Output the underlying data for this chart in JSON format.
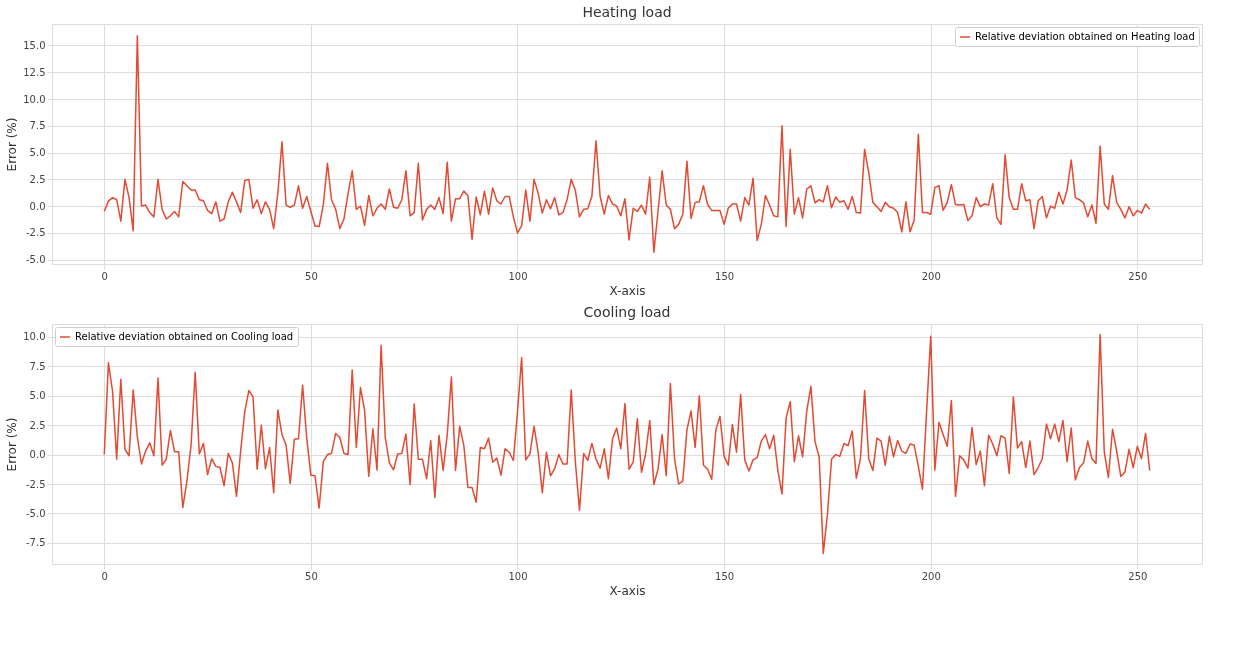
{
  "chart_data": [
    {
      "type": "line",
      "title": "Heating load",
      "xlabel": "X-axis",
      "ylabel": "Error (%)",
      "grid": true,
      "legend": "top right",
      "xlim": [
        -12.65,
        265.65
      ],
      "xticks": [
        0,
        50,
        100,
        150,
        200,
        250
      ],
      "ylim": [
        -5.4,
        17.0
      ],
      "yticks": [
        {
          "value": -5,
          "label": "-5.0"
        },
        {
          "value": -2.5,
          "label": "-2.5"
        },
        {
          "value": 0,
          "label": "0.0"
        },
        {
          "value": 2.5,
          "label": "2.5"
        },
        {
          "value": 5,
          "label": "5.0"
        },
        {
          "value": 7.5,
          "label": "7.5"
        },
        {
          "value": 10,
          "label": "10.0"
        },
        {
          "value": 12.5,
          "label": "12.5"
        },
        {
          "value": 15,
          "label": "15.0"
        }
      ],
      "x": [
        0,
        1,
        2,
        3,
        4,
        5,
        6,
        7,
        8,
        9,
        10,
        11,
        12,
        13,
        14,
        15,
        16,
        17,
        18,
        19,
        20,
        21,
        22,
        23,
        24,
        25,
        26,
        27,
        28,
        29,
        30,
        31,
        32,
        33,
        34,
        35,
        36,
        37,
        38,
        39,
        40,
        41,
        42,
        43,
        44,
        45,
        46,
        47,
        48,
        49,
        50,
        51,
        52,
        53,
        54,
        55,
        56,
        57,
        58,
        59,
        60,
        61,
        62,
        63,
        64,
        65,
        66,
        67,
        68,
        69,
        70,
        71,
        72,
        73,
        74,
        75,
        76,
        77,
        78,
        79,
        80,
        81,
        82,
        83,
        84,
        85,
        86,
        87,
        88,
        89,
        90,
        91,
        92,
        93,
        94,
        95,
        96,
        97,
        98,
        99,
        100,
        101,
        102,
        103,
        104,
        105,
        106,
        107,
        108,
        109,
        110,
        111,
        112,
        113,
        114,
        115,
        116,
        117,
        118,
        119,
        120,
        121,
        122,
        123,
        124,
        125,
        126,
        127,
        128,
        129,
        130,
        131,
        132,
        133,
        134,
        135,
        136,
        137,
        138,
        139,
        140,
        141,
        142,
        143,
        144,
        145,
        146,
        147,
        148,
        149,
        150,
        151,
        152,
        153,
        154,
        155,
        156,
        157,
        158,
        159,
        160,
        161,
        162,
        163,
        164,
        165,
        166,
        167,
        168,
        169,
        170,
        171,
        172,
        173,
        174,
        175,
        176,
        177,
        178,
        179,
        180,
        181,
        182,
        183,
        184,
        185,
        186,
        187,
        188,
        189,
        190,
        191,
        192,
        193,
        194,
        195,
        196,
        197,
        198,
        199,
        200,
        201,
        202,
        203,
        204,
        205,
        206,
        207,
        208,
        209,
        210,
        211,
        212,
        213,
        214,
        215,
        216,
        217,
        218,
        219,
        220,
        221,
        222,
        223,
        224,
        225,
        226,
        227,
        228,
        229,
        230,
        231,
        232,
        233,
        234,
        235,
        236,
        237,
        238,
        239,
        240,
        241,
        242,
        243,
        244,
        245,
        246,
        247,
        248,
        249,
        250,
        251,
        252,
        253
      ],
      "series": [
        {
          "name": "Relative deviation obtained on Heating load",
          "color": "#e24a33",
          "values": [
            -0.47,
            0.47,
            0.8,
            0.6,
            -1.4,
            2.5,
            0.8,
            -2.3,
            15.9,
            0,
            0.1,
            -0.6,
            -1.0,
            2.5,
            -0.3,
            -1.2,
            -0.9,
            -0.5,
            -1.0,
            2.3,
            1.9,
            1.5,
            1.5,
            0.6,
            0.5,
            -0.4,
            -0.7,
            0.4,
            -1.4,
            -1.2,
            0.4,
            1.3,
            0.4,
            -0.6,
            2.4,
            2.5,
            -0.2,
            0.6,
            -0.7,
            0.4,
            -0.3,
            -2.1,
            1.2,
            6.0,
            0.1,
            -0.1,
            0.1,
            1.9,
            -0.2,
            0.9,
            -0.5,
            -1.85,
            -1.9,
            0.1,
            4.0,
            0.6,
            -0.3,
            -2.1,
            -1.2,
            1.2,
            3.3,
            -0.3,
            0,
            -1.8,
            1.0,
            -0.9,
            -0.2,
            0.2,
            -0.3,
            1.6,
            -0.1,
            -0.2,
            0.6,
            3.3,
            -0.9,
            -0.6,
            4.0,
            -1.3,
            -0.3,
            0.1,
            -0.3,
            0.8,
            -0.7,
            4.1,
            -1.4,
            0.7,
            0.7,
            1.4,
            1.0,
            -3.1,
            0.85,
            -0.8,
            1.4,
            -0.75,
            1.7,
            0.5,
            0.2,
            0.9,
            0.9,
            -1.0,
            -2.5,
            -1.85,
            1.5,
            -1.4,
            2.5,
            1.2,
            -0.65,
            0.6,
            -0.25,
            0.8,
            -0.8,
            -0.6,
            0.6,
            2.5,
            1.45,
            -1.0,
            -0.3,
            -0.25,
            0.9,
            6.1,
            0.9,
            -0.75,
            1.0,
            0.2,
            0,
            -0.9,
            0.7,
            -3.15,
            -0.2,
            -0.5,
            0.1,
            -0.75,
            2.7,
            -4.3,
            -0.5,
            3.3,
            0.1,
            -0.3,
            -2.1,
            -1.7,
            -0.75,
            4.2,
            -1.15,
            0.35,
            0.4,
            1.9,
            0.15,
            -0.4,
            -0.4,
            -0.4,
            -1.7,
            -0.2,
            0.2,
            0.2,
            -1.4,
            0.8,
            0.1,
            2.6,
            -3.2,
            -1.7,
            1.0,
            0.1,
            -0.9,
            -1.0,
            7.5,
            -1.9,
            5.3,
            -0.75,
            0.8,
            -1.1,
            1.6,
            1.9,
            0.3,
            0.6,
            0.4,
            1.9,
            -0.15,
            0.85,
            0.35,
            0.5,
            -0.3,
            0.9,
            -0.6,
            -0.65,
            5.3,
            3.1,
            0.35,
            -0.05,
            -0.5,
            0.35,
            -0.05,
            -0.2,
            -0.6,
            -2.4,
            0.4,
            -2.4,
            -1.3,
            6.7,
            -0.6,
            -0.6,
            -0.75,
            1.75,
            1.9,
            -0.4,
            0.35,
            2.0,
            0.15,
            0.1,
            0.15,
            -1.35,
            -0.9,
            0.8,
            -0.05,
            0.2,
            0.1,
            2.1,
            -1.1,
            -1.7,
            4.8,
            0.8,
            -0.3,
            -0.3,
            2.1,
            0.5,
            0.6,
            -2.1,
            0.5,
            0.9,
            -1.1,
            0.0,
            -0.2,
            1.3,
            0.2,
            1.5,
            4.3,
            0.8,
            0.6,
            0.3,
            -1.0,
            0.1,
            -1.6,
            5.6,
            0.2,
            -0.3,
            2.85,
            0.35,
            -0.3,
            -1.1,
            -0.05,
            -0.9,
            -0.4,
            -0.65,
            0.2,
            -0.3
          ]
        }
      ]
    },
    {
      "type": "line",
      "title": "Cooling load",
      "xlabel": "X-axis",
      "ylabel": "Error (%)",
      "grid": true,
      "legend": "top left",
      "xlim": [
        -12.65,
        265.65
      ],
      "xticks": [
        0,
        50,
        100,
        150,
        200,
        250
      ],
      "ylim": [
        -9.3,
        11.1
      ],
      "yticks": [
        {
          "value": -7.5,
          "label": "-7.5"
        },
        {
          "value": -5,
          "label": "-5.0"
        },
        {
          "value": -2.5,
          "label": "-2.5"
        },
        {
          "value": 0,
          "label": "0.0"
        },
        {
          "value": 2.5,
          "label": "2.5"
        },
        {
          "value": 5,
          "label": "5.0"
        },
        {
          "value": 7.5,
          "label": "7.5"
        },
        {
          "value": 10,
          "label": "10.0"
        }
      ],
      "x": [
        0,
        1,
        2,
        3,
        4,
        5,
        6,
        7,
        8,
        9,
        10,
        11,
        12,
        13,
        14,
        15,
        16,
        17,
        18,
        19,
        20,
        21,
        22,
        23,
        24,
        25,
        26,
        27,
        28,
        29,
        30,
        31,
        32,
        33,
        34,
        35,
        36,
        37,
        38,
        39,
        40,
        41,
        42,
        43,
        44,
        45,
        46,
        47,
        48,
        49,
        50,
        51,
        52,
        53,
        54,
        55,
        56,
        57,
        58,
        59,
        60,
        61,
        62,
        63,
        64,
        65,
        66,
        67,
        68,
        69,
        70,
        71,
        72,
        73,
        74,
        75,
        76,
        77,
        78,
        79,
        80,
        81,
        82,
        83,
        84,
        85,
        86,
        87,
        88,
        89,
        90,
        91,
        92,
        93,
        94,
        95,
        96,
        97,
        98,
        99,
        100,
        101,
        102,
        103,
        104,
        105,
        106,
        107,
        108,
        109,
        110,
        111,
        112,
        113,
        114,
        115,
        116,
        117,
        118,
        119,
        120,
        121,
        122,
        123,
        124,
        125,
        126,
        127,
        128,
        129,
        130,
        131,
        132,
        133,
        134,
        135,
        136,
        137,
        138,
        139,
        140,
        141,
        142,
        143,
        144,
        145,
        146,
        147,
        148,
        149,
        150,
        151,
        152,
        153,
        154,
        155,
        156,
        157,
        158,
        159,
        160,
        161,
        162,
        163,
        164,
        165,
        166,
        167,
        168,
        169,
        170,
        171,
        172,
        173,
        174,
        175,
        176,
        177,
        178,
        179,
        180,
        181,
        182,
        183,
        184,
        185,
        186,
        187,
        188,
        189,
        190,
        191,
        192,
        193,
        194,
        195,
        196,
        197,
        198,
        199,
        200,
        201,
        202,
        203,
        204,
        205,
        206,
        207,
        208,
        209,
        210,
        211,
        212,
        213,
        214,
        215,
        216,
        217,
        218,
        219,
        220,
        221,
        222,
        223,
        224,
        225,
        226,
        227,
        228,
        229,
        230,
        231,
        232,
        233,
        234,
        235,
        236,
        237,
        238,
        239,
        240,
        241,
        242,
        243,
        244,
        245,
        246,
        247,
        248,
        249,
        250,
        251,
        252,
        253
      ],
      "series": [
        {
          "name": "Relative deviation obtained on Cooling load",
          "color": "#e24a33",
          "values": [
            0.0,
            7.8,
            5.4,
            -0.4,
            6.4,
            0.45,
            -0.1,
            5.5,
            1.5,
            -0.8,
            0.3,
            1.0,
            -0.1,
            6.5,
            -0.9,
            -0.4,
            2.05,
            0.25,
            0.25,
            -4.5,
            -2.25,
            0.8,
            7.0,
            0.05,
            0.95,
            -1.7,
            -0.35,
            -1.0,
            -1.1,
            -2.65,
            0.1,
            -0.7,
            -3.55,
            0.3,
            3.65,
            5.45,
            4.9,
            -1.25,
            2.5,
            -1.2,
            0.6,
            -3.25,
            3.8,
            1.7,
            0.8,
            -2.45,
            1.3,
            1.35,
            5.9,
            1.35,
            -1.75,
            -1.8,
            -4.55,
            -0.6,
            0.0,
            0.1,
            1.8,
            1.45,
            0.1,
            0.0,
            7.2,
            0.6,
            5.7,
            3.75,
            -1.85,
            2.2,
            -1.3,
            9.3,
            1.45,
            -0.7,
            -1.3,
            0.05,
            0.1,
            1.75,
            -2.55,
            4.3,
            -0.4,
            -0.4,
            -2.05,
            1.2,
            -3.65,
            1.65,
            -1.35,
            1.7,
            6.6,
            -1.35,
            2.4,
            0.8,
            -2.8,
            -2.8,
            -4.05,
            0.6,
            0.5,
            1.4,
            -0.65,
            -0.3,
            -1.75,
            0.5,
            0.2,
            -0.5,
            3.65,
            8.25,
            -0.45,
            0.05,
            2.4,
            0.2,
            -3.25,
            0.2,
            -1.8,
            -1.2,
            0.0,
            -0.8,
            -0.8,
            5.5,
            -0.6,
            -4.75,
            0.1,
            -0.5,
            0.95,
            -0.4,
            -1.15,
            0.5,
            -2.05,
            1.35,
            2.25,
            0.5,
            4.35,
            -1.25,
            -0.65,
            3.05,
            -1.5,
            0.05,
            2.9,
            -2.55,
            -1.25,
            1.7,
            -1.8,
            6.05,
            -0.35,
            -2.5,
            -2.25,
            2.1,
            3.7,
            0.6,
            5.0,
            -0.9,
            -1.25,
            -2.1,
            2.1,
            3.25,
            -0.15,
            -0.9,
            2.55,
            0.2,
            5.1,
            -0.45,
            -1.4,
            -0.45,
            -0.25,
            1.15,
            1.7,
            0.5,
            1.65,
            -1.35,
            -3.35,
            3.1,
            4.5,
            -0.6,
            1.6,
            -0.2,
            3.7,
            5.8,
            1.1,
            -0.2,
            -8.4,
            -5.1,
            -0.4,
            0.0,
            -0.15,
            0.95,
            0.75,
            2.0,
            -2.0,
            -0.35,
            5.45,
            -0.35,
            -1.35,
            1.4,
            1.15,
            -0.9,
            1.55,
            -0.2,
            1.2,
            0.3,
            0.1,
            0.9,
            0.8,
            -1.0,
            -2.95,
            3.65,
            10.05,
            -1.3,
            2.75,
            1.7,
            0.7,
            4.6,
            -3.55,
            -0.1,
            -0.45,
            -1.15,
            2.3,
            -0.85,
            0.3,
            -2.65,
            1.65,
            0.9,
            -0.1,
            1.6,
            1.4,
            -1.6,
            4.9,
            0.55,
            1.1,
            -1.1,
            1.15,
            -1.7,
            -1.1,
            -0.35,
            2.6,
            1.35,
            2.6,
            1.1,
            2.9,
            -0.6,
            2.25,
            -2.15,
            -1.1,
            -0.7,
            1.15,
            -0.35,
            -0.75,
            10.2,
            0.2,
            -1.95,
            2.15,
            0.3,
            -1.85,
            -1.5,
            0.45,
            -1.1,
            0.7,
            -0.35,
            1.8,
            -1.35
          ]
        }
      ]
    }
  ]
}
